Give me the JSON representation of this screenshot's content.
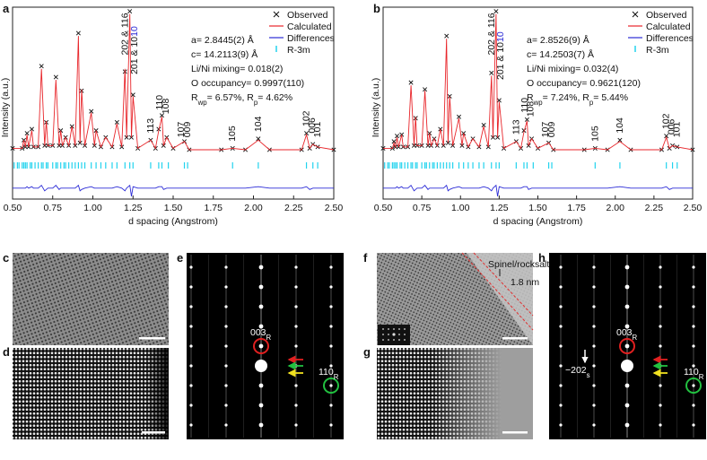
{
  "chart_data": [
    {
      "type": "line",
      "panel": "a",
      "xlabel": "d spacing (Angstrom)",
      "ylabel": "Intensity (a.u.)",
      "xlim": [
        0.5,
        2.5
      ],
      "ylim": [
        -0.35,
        1.05
      ],
      "xticks": [
        {
          "value": 0.5,
          "label": "0.50"
        },
        0.75,
        {
          "value": 1,
          "label": "1.00"
        },
        1.25,
        {
          "value": 1.5,
          "label": "1.50"
        },
        1.75,
        {
          "value": 2,
          "label": "2.00"
        },
        2.25,
        {
          "value": 2.5,
          "label": "2.50"
        }
      ],
      "x": [
        0.5,
        0.56,
        0.57,
        0.58,
        0.59,
        0.6,
        0.62,
        0.63,
        0.66,
        0.68,
        0.7,
        0.71,
        0.72,
        0.75,
        0.77,
        0.79,
        0.8,
        0.81,
        0.83,
        0.85,
        0.87,
        0.89,
        0.91,
        0.92,
        0.93,
        0.95,
        0.99,
        1.01,
        1.02,
        1.05,
        1.08,
        1.12,
        1.15,
        1.18,
        1.2,
        1.21,
        1.23,
        1.24,
        1.25,
        1.28,
        1.36,
        1.39,
        1.41,
        1.43,
        1.44,
        1.46,
        1.5,
        1.57,
        1.6,
        1.8,
        1.87,
        1.95,
        2.03,
        2.1,
        2.3,
        2.33,
        2.35,
        2.37,
        2.4,
        2.5
      ],
      "series": [
        {
          "name": "Observed",
          "color": "#111111",
          "marker": "x",
          "values": [
            0.02,
            0.02,
            0.08,
            0.03,
            0.13,
            0.03,
            0.16,
            0.03,
            0.03,
            0.62,
            0.04,
            0.21,
            0.04,
            0.04,
            0.54,
            0.04,
            0.15,
            0.04,
            0.1,
            0.04,
            0.18,
            0.04,
            0.86,
            0.06,
            0.44,
            0.04,
            0.29,
            0.04,
            0.15,
            0.03,
            0.1,
            0.03,
            0.21,
            0.03,
            0.58,
            0.1,
            1.02,
            0.1,
            0.41,
            0.02,
            0.08,
            0.02,
            0.16,
            0.26,
            0.04,
            0.1,
            0.02,
            0.07,
            0.01,
            0.01,
            0.02,
            0.01,
            0.09,
            0.01,
            0.01,
            0.13,
            0.02,
            0.05,
            0.03,
            0.01
          ]
        },
        {
          "name": "Calculated",
          "color": "#e8262b",
          "values": [
            0.02,
            0.02,
            0.08,
            0.03,
            0.12,
            0.03,
            0.15,
            0.03,
            0.03,
            0.6,
            0.04,
            0.22,
            0.04,
            0.04,
            0.52,
            0.04,
            0.15,
            0.04,
            0.1,
            0.04,
            0.18,
            0.04,
            0.84,
            0.06,
            0.45,
            0.04,
            0.28,
            0.04,
            0.15,
            0.03,
            0.1,
            0.03,
            0.2,
            0.03,
            0.6,
            0.1,
            1.0,
            0.1,
            0.4,
            0.02,
            0.08,
            0.02,
            0.15,
            0.25,
            0.04,
            0.1,
            0.02,
            0.07,
            0.01,
            0.01,
            0.02,
            0.01,
            0.08,
            0.01,
            0.01,
            0.12,
            0.02,
            0.05,
            0.03,
            0.01
          ]
        },
        {
          "name": "Differences",
          "color": "#2b2bd6",
          "values": [
            -0.27,
            -0.27,
            -0.27,
            -0.27,
            -0.26,
            -0.27,
            -0.26,
            -0.27,
            -0.27,
            -0.25,
            -0.29,
            -0.28,
            -0.27,
            -0.27,
            -0.25,
            -0.28,
            -0.27,
            -0.27,
            -0.27,
            -0.27,
            -0.27,
            -0.27,
            -0.25,
            -0.29,
            -0.28,
            -0.27,
            -0.26,
            -0.27,
            -0.27,
            -0.27,
            -0.27,
            -0.27,
            -0.26,
            -0.27,
            -0.29,
            -0.27,
            -0.25,
            -0.33,
            -0.26,
            -0.27,
            -0.27,
            -0.27,
            -0.26,
            -0.26,
            -0.28,
            -0.27,
            -0.27,
            -0.27,
            -0.27,
            -0.27,
            -0.27,
            -0.27,
            -0.26,
            -0.27,
            -0.27,
            -0.26,
            -0.28,
            -0.27,
            -0.27,
            -0.27
          ]
        },
        {
          "name": "R-3m",
          "color": "#22d3ee",
          "positions": [
            0.51,
            0.53,
            0.54,
            0.56,
            0.57,
            0.58,
            0.59,
            0.61,
            0.62,
            0.64,
            0.66,
            0.68,
            0.69,
            0.71,
            0.72,
            0.75,
            0.77,
            0.78,
            0.8,
            0.82,
            0.83,
            0.85,
            0.87,
            0.89,
            0.91,
            0.93,
            0.95,
            0.99,
            1.02,
            1.05,
            1.08,
            1.12,
            1.15,
            1.2,
            1.23,
            1.25,
            1.36,
            1.41,
            1.43,
            1.47,
            1.57,
            1.59,
            1.87,
            2.03,
            2.33,
            2.37,
            2.4
          ]
        }
      ],
      "refinement": [
        "a= 2.8445(2) Å",
        "c= 14.2113(9) Å",
        "Li/Ni mixing= 0.018(2)",
        "O occupancy= 0.9997(110)",
        [
          {
            "text": "R"
          },
          {
            "text": "wp",
            "sub": true
          },
          {
            "text": "= 6.57%, R"
          },
          {
            "text": "p",
            "sub": true
          },
          {
            "text": "= 4.62%"
          }
        ]
      ],
      "peak_labels": [
        {
          "text": "202 & 116",
          "x": 1.2,
          "y": 0.7
        },
        {
          "parts": [
            {
              "text": "201 & 10"
            },
            {
              "text": "10",
              "color": "#2b2bd6"
            }
          ],
          "x": 1.26,
          "y": 0.56
        },
        {
          "text": "113",
          "x": 1.36,
          "y": 0.13
        },
        {
          "text": "110",
          "x": 1.415,
          "y": 0.3
        },
        {
          "text": "108",
          "x": 1.455,
          "y": 0.27
        },
        {
          "text": "107",
          "x": 1.55,
          "y": 0.1
        },
        {
          "text": "009",
          "x": 1.59,
          "y": 0.1
        },
        {
          "text": "105",
          "x": 1.87,
          "y": 0.07
        },
        {
          "text": "104",
          "x": 2.03,
          "y": 0.14
        },
        {
          "text": "102",
          "x": 2.33,
          "y": 0.18
        },
        {
          "text": "006",
          "x": 2.365,
          "y": 0.13
        },
        {
          "text": "101",
          "x": 2.4,
          "y": 0.1
        }
      ]
    },
    {
      "type": "line",
      "panel": "b",
      "xlabel": "d spacing (Angstrom)",
      "ylabel": "Intensity (a.u.)",
      "xlim": [
        0.5,
        2.5
      ],
      "ylim": [
        -0.35,
        1.05
      ],
      "xticks": [
        {
          "value": 0.5,
          "label": "0.50"
        },
        0.75,
        {
          "value": 1,
          "label": "1.00"
        },
        1.25,
        {
          "value": 1.5,
          "label": "1.50"
        },
        1.75,
        {
          "value": 2,
          "label": "2.00"
        },
        2.25,
        {
          "value": 2.5,
          "label": "2.50"
        }
      ],
      "x": [
        0.5,
        0.56,
        0.57,
        0.58,
        0.59,
        0.6,
        0.62,
        0.63,
        0.66,
        0.68,
        0.7,
        0.71,
        0.72,
        0.75,
        0.77,
        0.79,
        0.8,
        0.81,
        0.83,
        0.85,
        0.87,
        0.89,
        0.91,
        0.92,
        0.93,
        0.95,
        0.99,
        1.01,
        1.02,
        1.05,
        1.08,
        1.12,
        1.15,
        1.18,
        1.2,
        1.21,
        1.23,
        1.24,
        1.25,
        1.28,
        1.36,
        1.39,
        1.41,
        1.43,
        1.44,
        1.46,
        1.5,
        1.57,
        1.6,
        1.8,
        1.87,
        1.95,
        2.03,
        2.1,
        2.3,
        2.33,
        2.35,
        2.37,
        2.4,
        2.5
      ],
      "series": [
        {
          "name": "Observed",
          "color": "#111111",
          "marker": "x",
          "values": [
            0.02,
            0.02,
            0.07,
            0.03,
            0.11,
            0.03,
            0.12,
            0.03,
            0.03,
            0.5,
            0.04,
            0.24,
            0.04,
            0.04,
            0.45,
            0.04,
            0.13,
            0.04,
            0.09,
            0.04,
            0.16,
            0.04,
            0.84,
            0.06,
            0.4,
            0.04,
            0.25,
            0.04,
            0.13,
            0.03,
            0.09,
            0.03,
            0.19,
            0.03,
            0.57,
            0.1,
            1.02,
            0.1,
            0.37,
            0.02,
            0.07,
            0.02,
            0.15,
            0.23,
            0.04,
            0.09,
            0.02,
            0.06,
            0.01,
            0.01,
            0.02,
            0.01,
            0.08,
            0.01,
            0.01,
            0.11,
            0.02,
            0.04,
            0.03,
            0.01
          ]
        },
        {
          "name": "Calculated",
          "color": "#e8262b",
          "values": [
            0.02,
            0.02,
            0.06,
            0.03,
            0.1,
            0.03,
            0.12,
            0.03,
            0.03,
            0.48,
            0.04,
            0.25,
            0.04,
            0.04,
            0.44,
            0.04,
            0.13,
            0.04,
            0.09,
            0.04,
            0.16,
            0.04,
            0.82,
            0.06,
            0.4,
            0.04,
            0.24,
            0.04,
            0.13,
            0.03,
            0.09,
            0.03,
            0.18,
            0.03,
            0.55,
            0.1,
            1.0,
            0.1,
            0.36,
            0.02,
            0.07,
            0.02,
            0.14,
            0.22,
            0.04,
            0.09,
            0.02,
            0.06,
            0.01,
            0.01,
            0.02,
            0.01,
            0.07,
            0.01,
            0.01,
            0.1,
            0.02,
            0.04,
            0.03,
            0.01
          ]
        },
        {
          "name": "Differences",
          "color": "#2b2bd6",
          "values": [
            -0.27,
            -0.27,
            -0.27,
            -0.27,
            -0.26,
            -0.27,
            -0.26,
            -0.27,
            -0.27,
            -0.25,
            -0.29,
            -0.28,
            -0.27,
            -0.27,
            -0.25,
            -0.28,
            -0.27,
            -0.27,
            -0.27,
            -0.27,
            -0.27,
            -0.27,
            -0.25,
            -0.29,
            -0.28,
            -0.27,
            -0.26,
            -0.27,
            -0.27,
            -0.27,
            -0.27,
            -0.27,
            -0.26,
            -0.27,
            -0.29,
            -0.27,
            -0.25,
            -0.33,
            -0.26,
            -0.27,
            -0.27,
            -0.27,
            -0.26,
            -0.26,
            -0.28,
            -0.27,
            -0.27,
            -0.27,
            -0.27,
            -0.27,
            -0.27,
            -0.27,
            -0.26,
            -0.27,
            -0.27,
            -0.26,
            -0.28,
            -0.27,
            -0.27,
            -0.27
          ]
        },
        {
          "name": "R-3m",
          "color": "#22d3ee",
          "positions": [
            0.51,
            0.53,
            0.54,
            0.56,
            0.57,
            0.58,
            0.59,
            0.61,
            0.62,
            0.64,
            0.66,
            0.68,
            0.69,
            0.71,
            0.72,
            0.75,
            0.77,
            0.78,
            0.8,
            0.82,
            0.83,
            0.85,
            0.87,
            0.89,
            0.91,
            0.93,
            0.95,
            0.99,
            1.02,
            1.05,
            1.08,
            1.12,
            1.15,
            1.2,
            1.23,
            1.25,
            1.36,
            1.41,
            1.43,
            1.47,
            1.57,
            1.59,
            1.87,
            2.03,
            2.33,
            2.37,
            2.4
          ]
        }
      ],
      "refinement": [
        "a= 2.8526(9) Å",
        "c= 14.2503(7) Å",
        "Li/Ni mixing= 0.032(4)",
        "O occupancy= 0.9621(120)",
        [
          {
            "text": "R"
          },
          {
            "text": "wp",
            "sub": true
          },
          {
            "text": "= 7.24%, R"
          },
          {
            "text": "p",
            "sub": true
          },
          {
            "text": "= 5.44%"
          }
        ]
      ],
      "peak_labels": [
        {
          "text": "202 & 116",
          "x": 1.2,
          "y": 0.7
        },
        {
          "parts": [
            {
              "text": "201 & 10"
            },
            {
              "text": "10",
              "color": "#2b2bd6"
            }
          ],
          "x": 1.26,
          "y": 0.52
        },
        {
          "text": "113",
          "x": 1.36,
          "y": 0.12
        },
        {
          "text": "110",
          "x": 1.415,
          "y": 0.28
        },
        {
          "text": "108",
          "x": 1.455,
          "y": 0.25
        },
        {
          "text": "107",
          "x": 1.55,
          "y": 0.1
        },
        {
          "text": "009",
          "x": 1.59,
          "y": 0.1
        },
        {
          "text": "105",
          "x": 1.87,
          "y": 0.07
        },
        {
          "text": "104",
          "x": 2.03,
          "y": 0.13
        },
        {
          "text": "102",
          "x": 2.33,
          "y": 0.16
        },
        {
          "text": "006",
          "x": 2.365,
          "y": 0.12
        },
        {
          "text": "101",
          "x": 2.4,
          "y": 0.1
        }
      ]
    }
  ],
  "images": [
    {
      "panel": "c"
    },
    {
      "panel": "d"
    },
    {
      "panel": "e",
      "labels": [
        [
          {
            "text": "003"
          },
          {
            "text": "R",
            "sub": true
          }
        ],
        [
          {
            "text": "110"
          },
          {
            "text": "R",
            "sub": true
          }
        ]
      ]
    },
    {
      "panel": "f",
      "labels": [
        "Spinel/rocksalt",
        "1.8 nm"
      ]
    },
    {
      "panel": "g"
    },
    {
      "panel": "h",
      "labels": [
        [
          {
            "text": "−202"
          },
          {
            "text": "s",
            "sub": true
          }
        ],
        [
          {
            "text": "003"
          },
          {
            "text": "R",
            "sub": true
          }
        ],
        [
          {
            "text": "110"
          },
          {
            "text": "R",
            "sub": true
          }
        ]
      ]
    }
  ]
}
